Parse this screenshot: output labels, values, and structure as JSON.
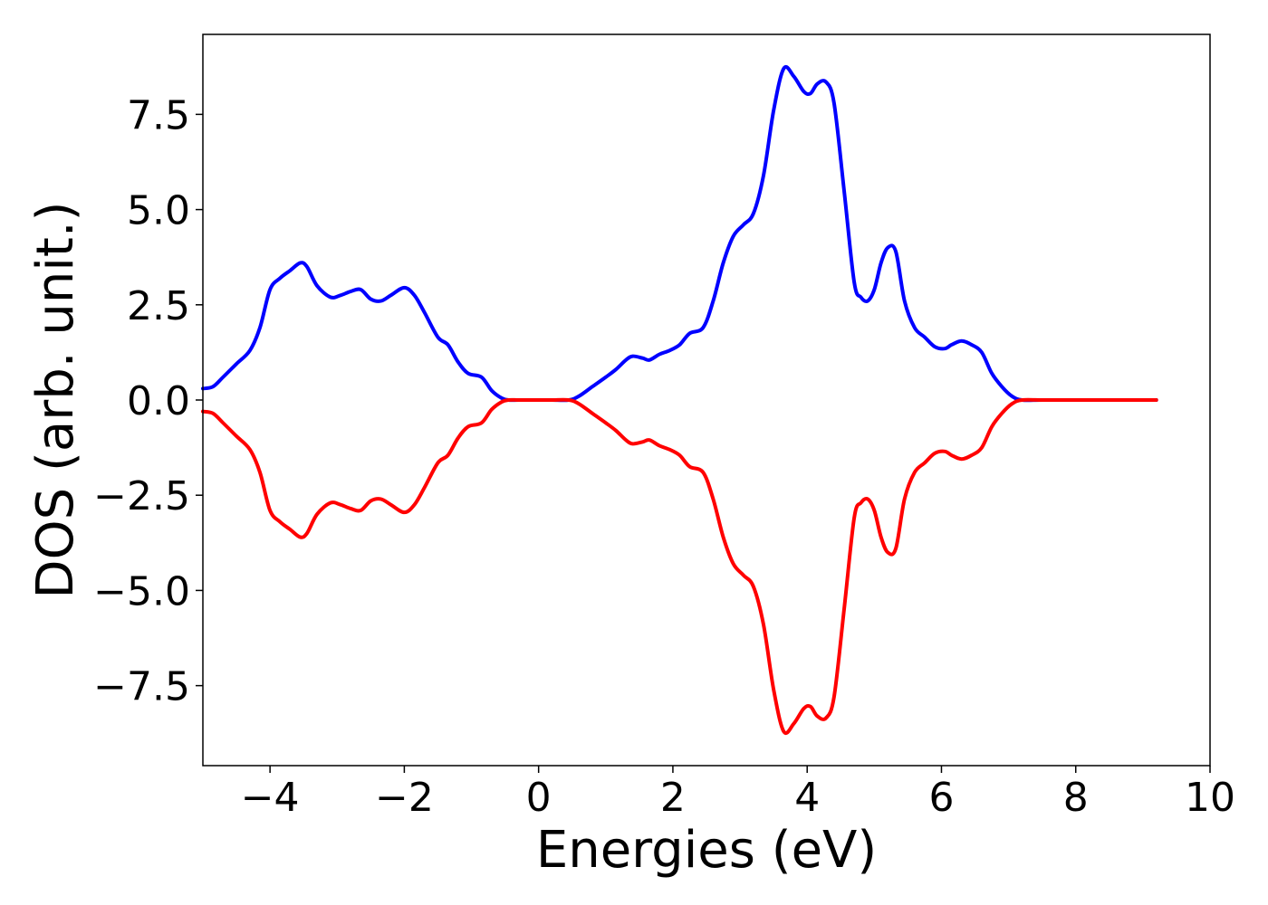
{
  "chart_data": {
    "type": "line",
    "xlabel": "Energies (eV)",
    "ylabel": "DOS (arb. unit.)",
    "xlim": [
      -5,
      10
    ],
    "ylim": [
      -9.6,
      9.6
    ],
    "x_ticks": [
      -4,
      -2,
      0,
      2,
      4,
      6,
      8,
      10
    ],
    "x_tick_labels": [
      "−4",
      "−2",
      "0",
      "2",
      "4",
      "6",
      "8",
      "10"
    ],
    "y_ticks": [
      -7.5,
      -5.0,
      -2.5,
      0.0,
      2.5,
      5.0,
      7.5
    ],
    "y_tick_labels": [
      "−7.5",
      "−5.0",
      "−2.5",
      "0.0",
      "2.5",
      "5.0",
      "7.5"
    ],
    "grid": false,
    "series": [
      {
        "color": "#0000ff",
        "x": [
          -5.0,
          -4.85,
          -4.7,
          -4.5,
          -4.3,
          -4.15,
          -4.0,
          -3.85,
          -3.7,
          -3.55,
          -3.45,
          -3.3,
          -3.1,
          -2.95,
          -2.8,
          -2.65,
          -2.5,
          -2.35,
          -2.2,
          -2.0,
          -1.85,
          -1.7,
          -1.5,
          -1.35,
          -1.2,
          -1.05,
          -0.85,
          -0.7,
          -0.55,
          -0.45,
          -0.3,
          -0.1,
          0.0,
          0.2,
          0.45,
          0.6,
          0.8,
          1.0,
          1.15,
          1.3,
          1.4,
          1.55,
          1.65,
          1.8,
          1.95,
          2.1,
          2.25,
          2.45,
          2.6,
          2.75,
          2.9,
          3.05,
          3.2,
          3.35,
          3.5,
          3.65,
          3.8,
          3.95,
          4.05,
          4.15,
          4.28,
          4.4,
          4.55,
          4.7,
          4.8,
          4.9,
          5.0,
          5.1,
          5.2,
          5.32,
          5.45,
          5.6,
          5.75,
          5.9,
          6.05,
          6.15,
          6.3,
          6.45,
          6.6,
          6.75,
          6.9,
          7.05,
          7.2,
          7.5,
          8.0,
          8.5,
          9.2
        ],
        "values": [
          0.3,
          0.35,
          0.6,
          0.95,
          1.3,
          1.9,
          2.9,
          3.2,
          3.4,
          3.6,
          3.5,
          3.0,
          2.7,
          2.75,
          2.85,
          2.9,
          2.65,
          2.6,
          2.75,
          2.95,
          2.75,
          2.3,
          1.65,
          1.45,
          1.0,
          0.7,
          0.6,
          0.25,
          0.05,
          0.0,
          0.0,
          0.0,
          0.0,
          0.0,
          0.0,
          0.1,
          0.35,
          0.6,
          0.8,
          1.05,
          1.15,
          1.1,
          1.05,
          1.2,
          1.3,
          1.45,
          1.75,
          1.9,
          2.6,
          3.6,
          4.3,
          4.6,
          4.9,
          5.9,
          7.6,
          8.7,
          8.5,
          8.1,
          8.05,
          8.3,
          8.35,
          7.8,
          5.5,
          3.1,
          2.7,
          2.6,
          2.9,
          3.6,
          4.0,
          3.9,
          2.6,
          1.9,
          1.65,
          1.4,
          1.35,
          1.45,
          1.55,
          1.45,
          1.25,
          0.7,
          0.35,
          0.1,
          0.0,
          0.0,
          0.0,
          0.0,
          0.0
        ]
      },
      {
        "color": "#ff0000",
        "x": [
          -5.0,
          -4.85,
          -4.7,
          -4.5,
          -4.3,
          -4.15,
          -4.0,
          -3.85,
          -3.7,
          -3.55,
          -3.45,
          -3.3,
          -3.1,
          -2.95,
          -2.8,
          -2.65,
          -2.5,
          -2.35,
          -2.2,
          -2.0,
          -1.85,
          -1.7,
          -1.5,
          -1.35,
          -1.2,
          -1.05,
          -0.85,
          -0.7,
          -0.55,
          -0.45,
          -0.3,
          -0.1,
          0.0,
          0.2,
          0.45,
          0.6,
          0.8,
          1.0,
          1.15,
          1.3,
          1.4,
          1.55,
          1.65,
          1.8,
          1.95,
          2.1,
          2.25,
          2.45,
          2.6,
          2.75,
          2.9,
          3.05,
          3.2,
          3.35,
          3.5,
          3.65,
          3.8,
          3.95,
          4.05,
          4.15,
          4.28,
          4.4,
          4.55,
          4.7,
          4.8,
          4.9,
          5.0,
          5.1,
          5.2,
          5.32,
          5.45,
          5.6,
          5.75,
          5.9,
          6.05,
          6.15,
          6.3,
          6.45,
          6.6,
          6.75,
          6.9,
          7.05,
          7.2,
          7.5,
          8.0,
          8.5,
          9.2
        ],
        "values": [
          -0.3,
          -0.35,
          -0.6,
          -0.95,
          -1.3,
          -1.9,
          -2.9,
          -3.2,
          -3.4,
          -3.6,
          -3.5,
          -3.0,
          -2.7,
          -2.75,
          -2.85,
          -2.9,
          -2.65,
          -2.6,
          -2.75,
          -2.95,
          -2.75,
          -2.3,
          -1.65,
          -1.45,
          -1.0,
          -0.7,
          -0.6,
          -0.25,
          -0.05,
          0.0,
          0.0,
          0.0,
          0.0,
          0.0,
          0.0,
          -0.1,
          -0.35,
          -0.6,
          -0.8,
          -1.05,
          -1.15,
          -1.1,
          -1.05,
          -1.2,
          -1.3,
          -1.45,
          -1.75,
          -1.9,
          -2.6,
          -3.6,
          -4.3,
          -4.6,
          -4.9,
          -5.9,
          -7.6,
          -8.7,
          -8.5,
          -8.1,
          -8.05,
          -8.3,
          -8.35,
          -7.8,
          -5.5,
          -3.1,
          -2.7,
          -2.6,
          -2.9,
          -3.6,
          -4.0,
          -3.9,
          -2.6,
          -1.9,
          -1.65,
          -1.4,
          -1.35,
          -1.45,
          -1.55,
          -1.45,
          -1.25,
          -0.7,
          -0.35,
          -0.1,
          0.0,
          0.0,
          0.0,
          0.0,
          0.0
        ]
      }
    ]
  }
}
